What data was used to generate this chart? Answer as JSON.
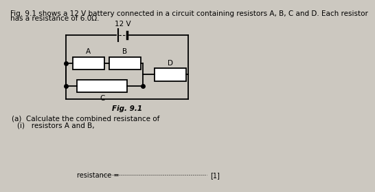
{
  "background_color": "#ccc8c0",
  "title_line1": "Fig. 9.1 shows a 12 V battery connected in a circuit containing resistors A, B, C and D. Each resistor",
  "title_line2": "has a resistance of 6.0Ω.",
  "fig_label": "Fig. 9.1",
  "voltage_label": "12 V",
  "question_a": "(a)  Calculate the combined resistance of",
  "question_i": "(i)   resistors A and B,",
  "answer_label": "resistance = ",
  "marks": "[1]",
  "font_size_body": 7.5,
  "font_size_small": 7.0
}
